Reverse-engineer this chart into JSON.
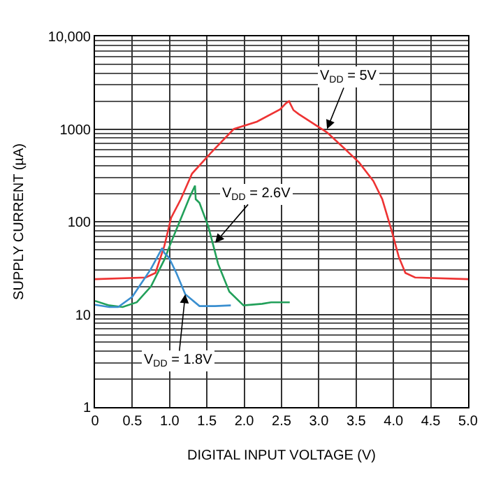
{
  "chart_data": {
    "type": "line",
    "xlabel": "DIGITAL INPUT VOLTAGE (V)",
    "ylabel": "SUPPLY CURRENT (µA)",
    "log": "y",
    "grid": true,
    "xlim": [
      0,
      5
    ],
    "xticks": [
      0,
      {
        "value": 0.5,
        "label": "0.5"
      },
      {
        "value": 1,
        "label": "1.0"
      },
      {
        "value": 1.5,
        "label": "1.5"
      },
      {
        "value": 2,
        "label": "2.0"
      },
      {
        "value": 2.5,
        "label": "2.5"
      },
      {
        "value": 3,
        "label": "3.0"
      },
      {
        "value": 3.5,
        "label": "3.5"
      },
      {
        "value": 4,
        "label": "4.0"
      },
      {
        "value": 4.5,
        "label": "4.5"
      },
      {
        "value": 5,
        "label": "5.0"
      }
    ],
    "ylim": [
      1,
      10000
    ],
    "yticks": [
      1,
      10,
      100,
      1000,
      {
        "value": 10000,
        "label": "10,000"
      }
    ],
    "series": [
      {
        "color": "#ee3333",
        "x": [
          0,
          0.68,
          0.81,
          0.93,
          1.02,
          1.15,
          1.3,
          1.55,
          1.86,
          2.17,
          2.48,
          2.56,
          2.6,
          2.66,
          2.73,
          3.11,
          3.35,
          3.54,
          3.73,
          3.85,
          3.98,
          4.07,
          4.16,
          4.29,
          5.0
        ],
        "values": [
          24,
          25,
          28,
          55,
          110,
          175,
          330,
          550,
          1000,
          1200,
          1630,
          1900,
          2000,
          1600,
          1450,
          920,
          610,
          435,
          275,
          175,
          78,
          42,
          28,
          25,
          24
        ]
      },
      {
        "color": "#22a05a",
        "x": [
          0,
          0.19,
          0.37,
          0.56,
          0.75,
          0.93,
          1.02,
          1.18,
          1.27,
          1.34,
          1.35,
          1.4,
          1.52,
          1.65,
          1.8,
          1.99,
          2.24,
          2.36,
          2.61
        ],
        "values": [
          14,
          12.5,
          12,
          13.5,
          20,
          39,
          60,
          123,
          185,
          245,
          175,
          160,
          88,
          35,
          17.6,
          12.5,
          13,
          13.5,
          13.5
        ]
      },
      {
        "color": "#3a8fd0",
        "x": [
          0,
          0.19,
          0.31,
          0.5,
          0.75,
          0.9,
          0.93,
          0.99,
          1.09,
          1.21,
          1.4,
          1.61,
          1.82
        ],
        "values": [
          12.7,
          12,
          12,
          15.5,
          31,
          52,
          46,
          41,
          28,
          16.5,
          12.3,
          12.3,
          12.5
        ]
      }
    ],
    "annotations": [
      {
        "text": "V$_{DD}$ = 5V",
        "x": 3.11,
        "y": 1000
      },
      {
        "text": "V$_{DD}$ = 2.6V",
        "x": 1.61,
        "y": 59
      },
      {
        "text": "V$_{DD}$ = 1.8V",
        "x": 1.21,
        "y": 16.5
      }
    ]
  }
}
